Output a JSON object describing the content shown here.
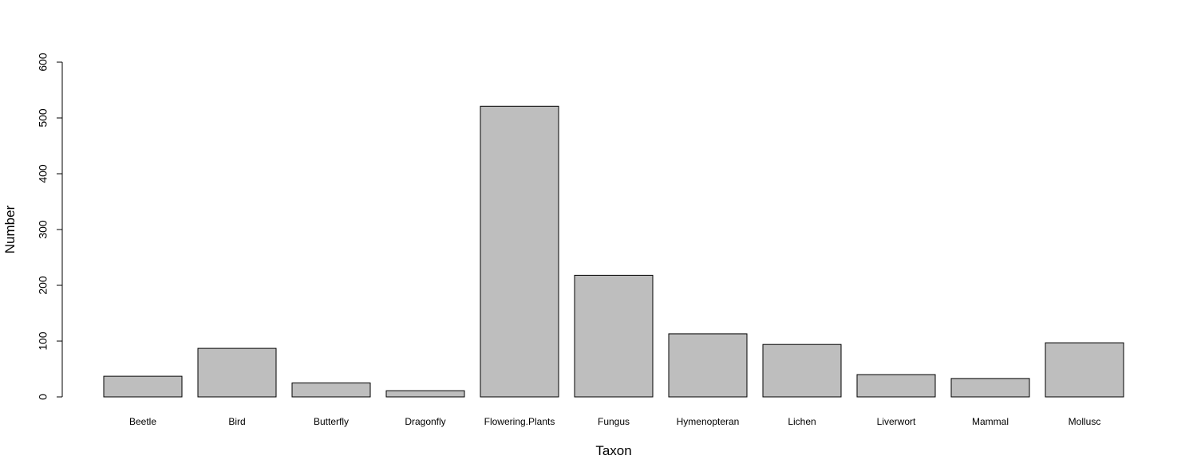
{
  "chart_data": {
    "type": "bar",
    "title": "",
    "xlabel": "Taxon",
    "ylabel": "Number",
    "ylim": [
      0,
      600
    ],
    "yticks": [
      0,
      100,
      200,
      300,
      400,
      500,
      600
    ],
    "grid": false,
    "bar_color": "#bebebe",
    "bar_border": "#000000",
    "categories": [
      "Beetle",
      "Bird",
      "Butterfly",
      "Dragonfly",
      "Flowering.Plants",
      "Fungus",
      "Hymenopteran",
      "Lichen",
      "Liverwort",
      "Mammal",
      "Mollusc"
    ],
    "values": [
      37,
      87,
      25,
      11,
      521,
      218,
      113,
      94,
      40,
      33,
      97
    ]
  }
}
